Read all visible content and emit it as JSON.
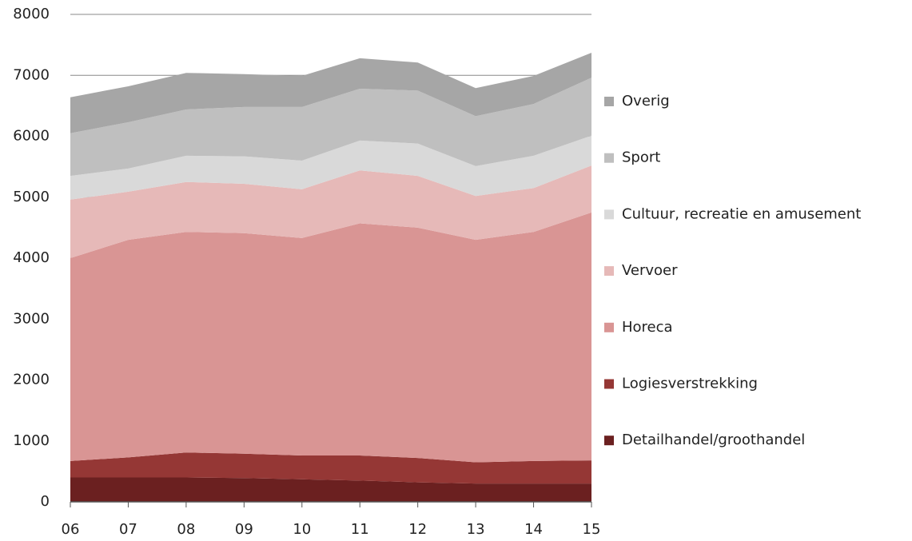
{
  "chart_data": {
    "type": "stacked_area",
    "categories": [
      "06",
      "07",
      "08",
      "09",
      "10",
      "11",
      "12",
      "13",
      "14",
      "15"
    ],
    "series": [
      {
        "name": "Detailhandel/groothandel",
        "color": "#6b2020",
        "values": [
          400,
          400,
          400,
          390,
          370,
          350,
          320,
          300,
          300,
          300
        ]
      },
      {
        "name": "Logiesverstrekking",
        "color": "#953735",
        "values": [
          270,
          330,
          410,
          400,
          390,
          410,
          400,
          350,
          370,
          380
        ]
      },
      {
        "name": "Horeca",
        "color": "#d99594",
        "values": [
          3330,
          3570,
          3620,
          3620,
          3570,
          3810,
          3780,
          3650,
          3760,
          4070
        ]
      },
      {
        "name": "Vervoer",
        "color": "#e6b9b8",
        "values": [
          960,
          790,
          820,
          810,
          800,
          870,
          850,
          720,
          720,
          770
        ]
      },
      {
        "name": "Cultuur, recreatie en amusement",
        "color": "#d9d9d9",
        "values": [
          390,
          380,
          430,
          450,
          470,
          490,
          530,
          490,
          530,
          490
        ]
      },
      {
        "name": "Sport",
        "color": "#bfbfbf",
        "values": [
          700,
          760,
          760,
          810,
          880,
          850,
          870,
          820,
          850,
          950
        ]
      },
      {
        "name": "Overig",
        "color": "#a6a6a6",
        "values": [
          590,
          590,
          600,
          540,
          510,
          500,
          460,
          460,
          460,
          410
        ]
      }
    ],
    "ylim": [
      0,
      8000
    ],
    "yticks": [
      0,
      1000,
      2000,
      3000,
      4000,
      5000,
      6000,
      7000,
      8000
    ],
    "grid": true,
    "legend": "right"
  }
}
